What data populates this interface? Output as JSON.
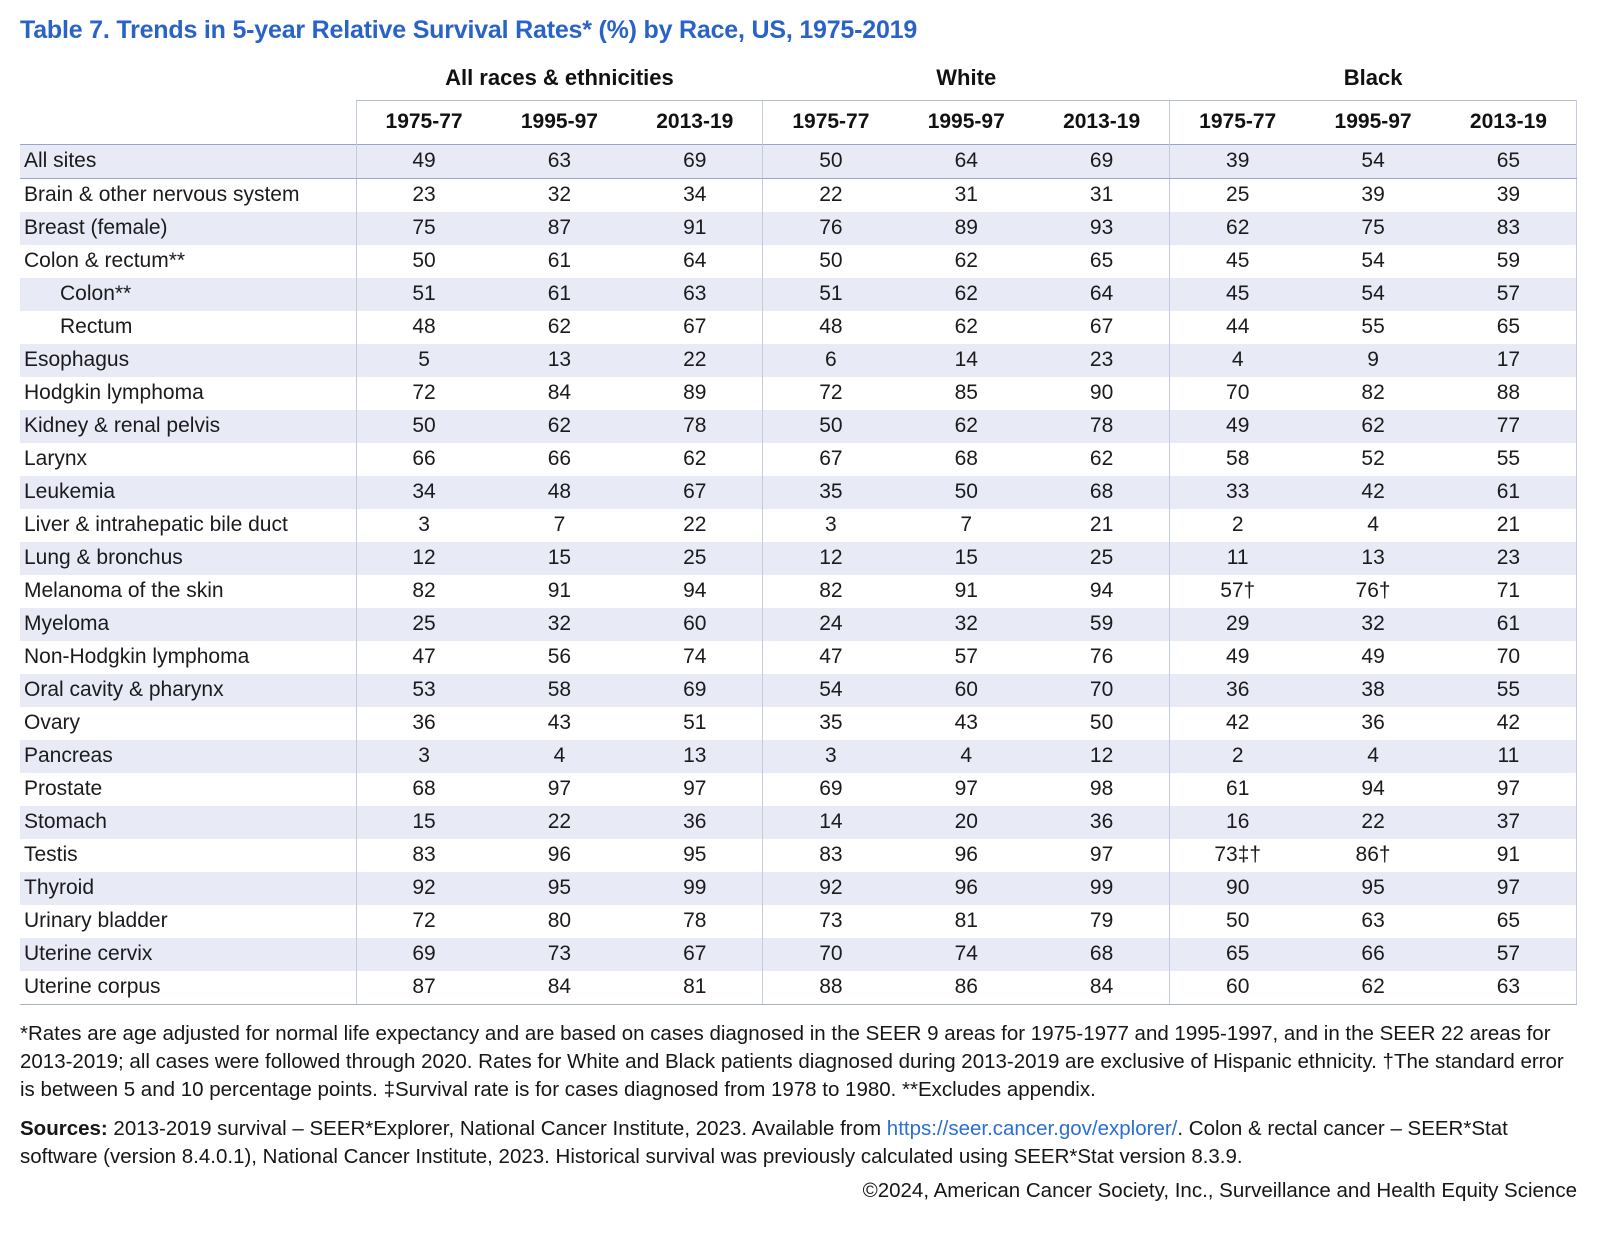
{
  "title": "Table 7. Trends in 5-year Relative Survival Rates* (%) by Race, US, 1975-2019",
  "table": {
    "groups": [
      {
        "label": "All races & ethnicities"
      },
      {
        "label": "White"
      },
      {
        "label": "Black"
      }
    ],
    "periods": [
      "1975-77",
      "1995-97",
      "2013-19"
    ],
    "rows": [
      {
        "label": "All sites",
        "indent": false,
        "values": [
          "49",
          "63",
          "69",
          "50",
          "64",
          "69",
          "39",
          "54",
          "65"
        ]
      },
      {
        "label": "Brain & other nervous system",
        "indent": false,
        "values": [
          "23",
          "32",
          "34",
          "22",
          "31",
          "31",
          "25",
          "39",
          "39"
        ]
      },
      {
        "label": "Breast (female)",
        "indent": false,
        "values": [
          "75",
          "87",
          "91",
          "76",
          "89",
          "93",
          "62",
          "75",
          "83"
        ]
      },
      {
        "label": "Colon & rectum**",
        "indent": false,
        "values": [
          "50",
          "61",
          "64",
          "50",
          "62",
          "65",
          "45",
          "54",
          "59"
        ]
      },
      {
        "label": "Colon**",
        "indent": true,
        "values": [
          "51",
          "61",
          "63",
          "51",
          "62",
          "64",
          "45",
          "54",
          "57"
        ]
      },
      {
        "label": "Rectum",
        "indent": true,
        "values": [
          "48",
          "62",
          "67",
          "48",
          "62",
          "67",
          "44",
          "55",
          "65"
        ]
      },
      {
        "label": "Esophagus",
        "indent": false,
        "values": [
          "5",
          "13",
          "22",
          "6",
          "14",
          "23",
          "4",
          "9",
          "17"
        ]
      },
      {
        "label": "Hodgkin lymphoma",
        "indent": false,
        "values": [
          "72",
          "84",
          "89",
          "72",
          "85",
          "90",
          "70",
          "82",
          "88"
        ]
      },
      {
        "label": "Kidney & renal pelvis",
        "indent": false,
        "values": [
          "50",
          "62",
          "78",
          "50",
          "62",
          "78",
          "49",
          "62",
          "77"
        ]
      },
      {
        "label": "Larynx",
        "indent": false,
        "values": [
          "66",
          "66",
          "62",
          "67",
          "68",
          "62",
          "58",
          "52",
          "55"
        ]
      },
      {
        "label": "Leukemia",
        "indent": false,
        "values": [
          "34",
          "48",
          "67",
          "35",
          "50",
          "68",
          "33",
          "42",
          "61"
        ]
      },
      {
        "label": "Liver & intrahepatic bile duct",
        "indent": false,
        "values": [
          "3",
          "7",
          "22",
          "3",
          "7",
          "21",
          "2",
          "4",
          "21"
        ]
      },
      {
        "label": "Lung & bronchus",
        "indent": false,
        "values": [
          "12",
          "15",
          "25",
          "12",
          "15",
          "25",
          "11",
          "13",
          "23"
        ]
      },
      {
        "label": "Melanoma of the skin",
        "indent": false,
        "values": [
          "82",
          "91",
          "94",
          "82",
          "91",
          "94",
          "57†",
          "76†",
          "71"
        ]
      },
      {
        "label": "Myeloma",
        "indent": false,
        "values": [
          "25",
          "32",
          "60",
          "24",
          "32",
          "59",
          "29",
          "32",
          "61"
        ]
      },
      {
        "label": "Non-Hodgkin lymphoma",
        "indent": false,
        "values": [
          "47",
          "56",
          "74",
          "47",
          "57",
          "76",
          "49",
          "49",
          "70"
        ]
      },
      {
        "label": "Oral cavity & pharynx",
        "indent": false,
        "values": [
          "53",
          "58",
          "69",
          "54",
          "60",
          "70",
          "36",
          "38",
          "55"
        ]
      },
      {
        "label": "Ovary",
        "indent": false,
        "values": [
          "36",
          "43",
          "51",
          "35",
          "43",
          "50",
          "42",
          "36",
          "42"
        ]
      },
      {
        "label": "Pancreas",
        "indent": false,
        "values": [
          "3",
          "4",
          "13",
          "3",
          "4",
          "12",
          "2",
          "4",
          "11"
        ]
      },
      {
        "label": "Prostate",
        "indent": false,
        "values": [
          "68",
          "97",
          "97",
          "69",
          "97",
          "98",
          "61",
          "94",
          "97"
        ]
      },
      {
        "label": "Stomach",
        "indent": false,
        "values": [
          "15",
          "22",
          "36",
          "14",
          "20",
          "36",
          "16",
          "22",
          "37"
        ]
      },
      {
        "label": "Testis",
        "indent": false,
        "values": [
          "83",
          "96",
          "95",
          "83",
          "96",
          "97",
          "73‡†",
          "86†",
          "91"
        ]
      },
      {
        "label": "Thyroid",
        "indent": false,
        "values": [
          "92",
          "95",
          "99",
          "92",
          "96",
          "99",
          "90",
          "95",
          "97"
        ]
      },
      {
        "label": "Urinary bladder",
        "indent": false,
        "values": [
          "72",
          "80",
          "78",
          "73",
          "81",
          "79",
          "50",
          "63",
          "65"
        ]
      },
      {
        "label": "Uterine cervix",
        "indent": false,
        "values": [
          "69",
          "73",
          "67",
          "70",
          "74",
          "68",
          "65",
          "66",
          "57"
        ]
      },
      {
        "label": "Uterine corpus",
        "indent": false,
        "values": [
          "87",
          "84",
          "81",
          "88",
          "86",
          "84",
          "60",
          "62",
          "63"
        ]
      }
    ]
  },
  "footnote": "*Rates are age adjusted for normal life expectancy and are based on cases diagnosed in the SEER 9 areas for 1975-1977 and 1995-1997, and in the SEER 22 areas for 2013-2019; all cases were followed through 2020. Rates for White and Black patients diagnosed during 2013-2019 are exclusive of Hispanic ethnicity. †The standard error is between 5 and 10 percentage points. ‡Survival rate is for cases diagnosed from 1978 to 1980. **Excludes appendix.",
  "sources": {
    "label": "Sources:",
    "text_before_link": " 2013-2019 survival – SEER*Explorer, National Cancer Institute, 2023. Available from ",
    "link": "https://seer.cancer.gov/explorer/",
    "text_after_link": ". Colon & rectal cancer – SEER*Stat software (version 8.4.0.1), National Cancer Institute, 2023. Historical survival was previously calculated using SEER*Stat version 8.3.9."
  },
  "copyright": "©2024, American Cancer Society, Inc., Surveillance and Health Equity Science",
  "colors": {
    "title_blue": "#2a63c8",
    "link_blue": "#2a6fd4",
    "row_shade": "#e8eaf5",
    "strong_border": "#9aa5c9",
    "light_border": "#c3cbe0"
  }
}
